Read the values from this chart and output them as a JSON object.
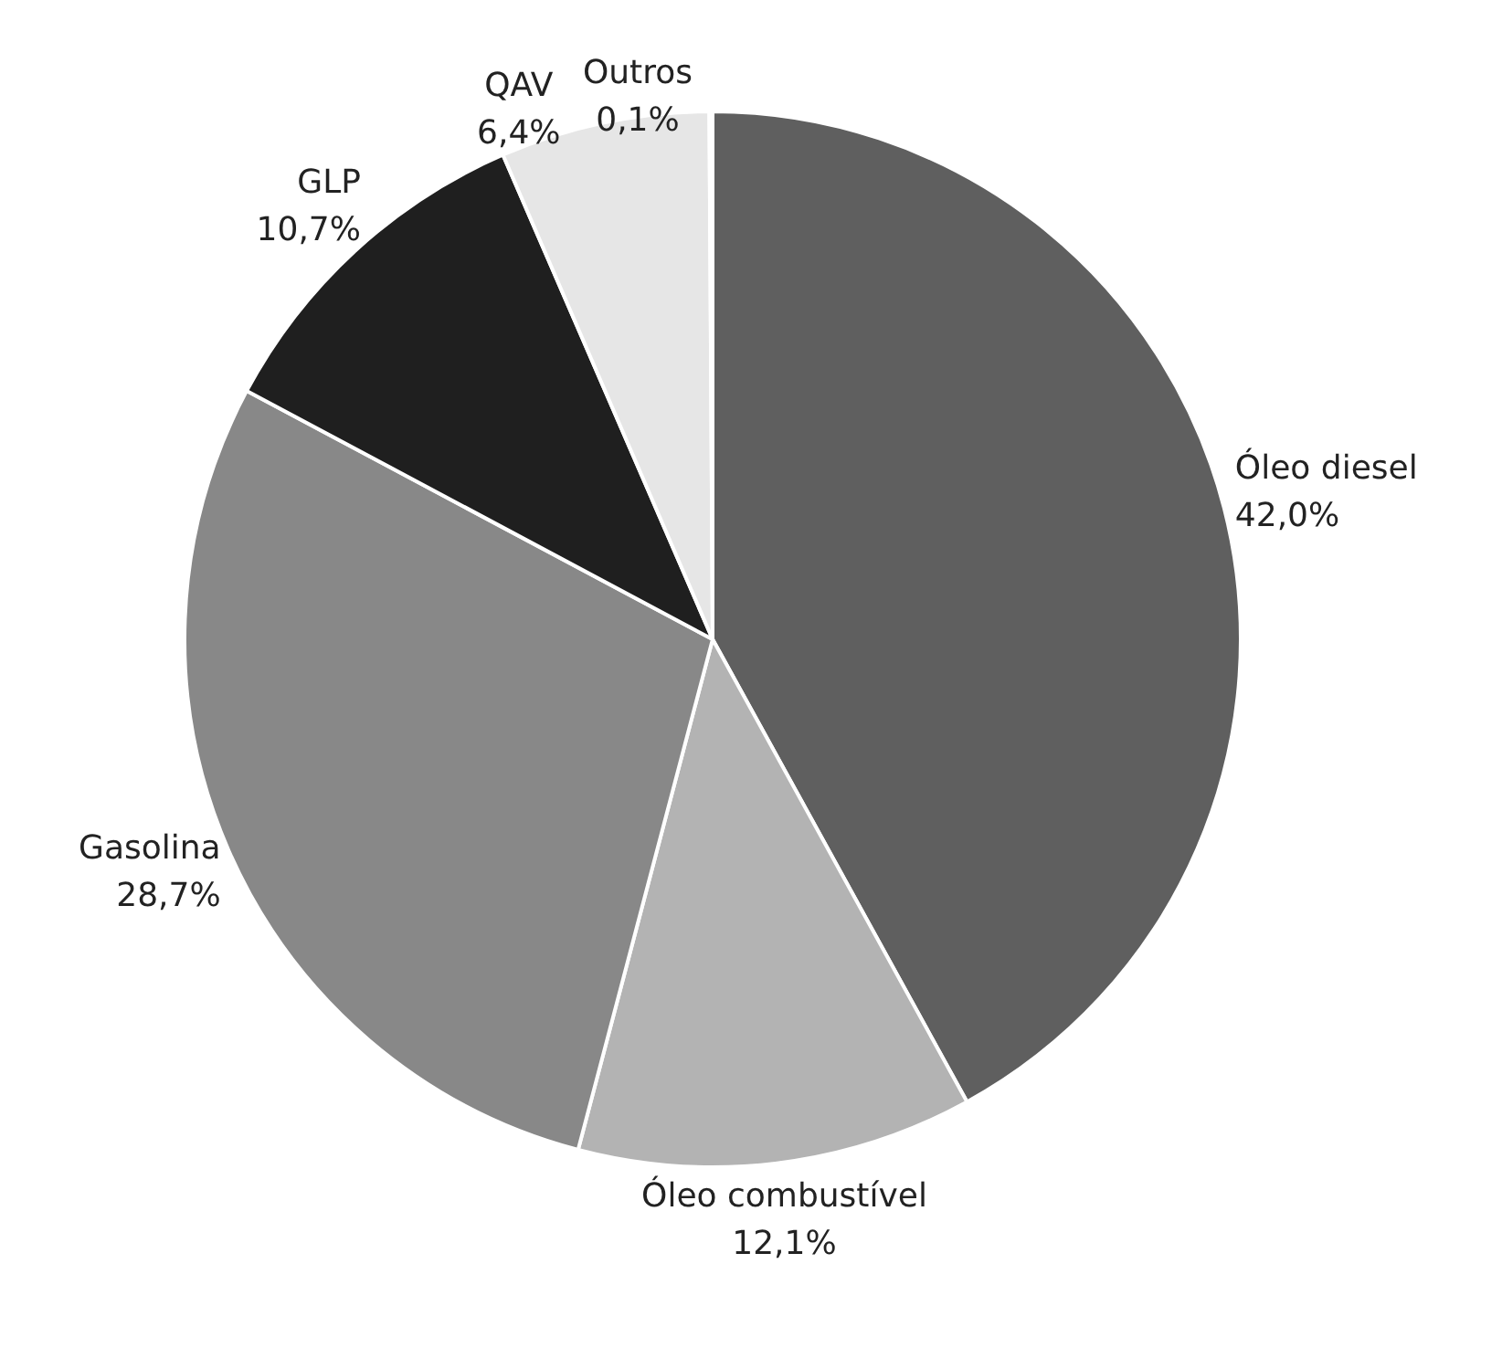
{
  "chart_data": {
    "type": "pie",
    "categories": [
      "Óleo diesel",
      "Óleo combustível",
      "Gasolina",
      "GLP",
      "QAV",
      "Outros"
    ],
    "values": [
      42.0,
      12.1,
      28.7,
      10.7,
      6.4,
      0.1
    ],
    "value_labels": [
      "42,0%",
      "12,1%",
      "28,7%",
      "10,7%",
      "6,4%",
      "0,1%"
    ],
    "colors": [
      "#5f5f5f",
      "#b3b3b3",
      "#888888",
      "#1f1f1f",
      "#e6e6e6",
      "#c8c8c8"
    ],
    "legend": false
  }
}
